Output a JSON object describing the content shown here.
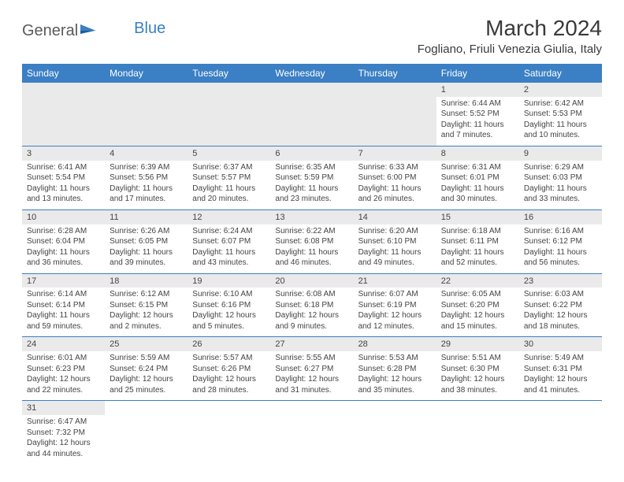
{
  "logo": {
    "part1": "General",
    "part2": "Blue"
  },
  "title": "March 2024",
  "location": "Fogliano, Friuli Venezia Giulia, Italy",
  "colors": {
    "header_bg": "#3b7fc4",
    "header_text": "#ffffff",
    "daynum_bg": "#eaeaea",
    "border": "#3b7fc4",
    "text": "#444444",
    "logo_gray": "#5a5a5a",
    "logo_blue": "#3b7fc4"
  },
  "weekdays": [
    "Sunday",
    "Monday",
    "Tuesday",
    "Wednesday",
    "Thursday",
    "Friday",
    "Saturday"
  ],
  "weeks": [
    [
      null,
      null,
      null,
      null,
      null,
      {
        "n": "1",
        "sr": "Sunrise: 6:44 AM",
        "ss": "Sunset: 5:52 PM",
        "dl1": "Daylight: 11 hours",
        "dl2": "and 7 minutes."
      },
      {
        "n": "2",
        "sr": "Sunrise: 6:42 AM",
        "ss": "Sunset: 5:53 PM",
        "dl1": "Daylight: 11 hours",
        "dl2": "and 10 minutes."
      }
    ],
    [
      {
        "n": "3",
        "sr": "Sunrise: 6:41 AM",
        "ss": "Sunset: 5:54 PM",
        "dl1": "Daylight: 11 hours",
        "dl2": "and 13 minutes."
      },
      {
        "n": "4",
        "sr": "Sunrise: 6:39 AM",
        "ss": "Sunset: 5:56 PM",
        "dl1": "Daylight: 11 hours",
        "dl2": "and 17 minutes."
      },
      {
        "n": "5",
        "sr": "Sunrise: 6:37 AM",
        "ss": "Sunset: 5:57 PM",
        "dl1": "Daylight: 11 hours",
        "dl2": "and 20 minutes."
      },
      {
        "n": "6",
        "sr": "Sunrise: 6:35 AM",
        "ss": "Sunset: 5:59 PM",
        "dl1": "Daylight: 11 hours",
        "dl2": "and 23 minutes."
      },
      {
        "n": "7",
        "sr": "Sunrise: 6:33 AM",
        "ss": "Sunset: 6:00 PM",
        "dl1": "Daylight: 11 hours",
        "dl2": "and 26 minutes."
      },
      {
        "n": "8",
        "sr": "Sunrise: 6:31 AM",
        "ss": "Sunset: 6:01 PM",
        "dl1": "Daylight: 11 hours",
        "dl2": "and 30 minutes."
      },
      {
        "n": "9",
        "sr": "Sunrise: 6:29 AM",
        "ss": "Sunset: 6:03 PM",
        "dl1": "Daylight: 11 hours",
        "dl2": "and 33 minutes."
      }
    ],
    [
      {
        "n": "10",
        "sr": "Sunrise: 6:28 AM",
        "ss": "Sunset: 6:04 PM",
        "dl1": "Daylight: 11 hours",
        "dl2": "and 36 minutes."
      },
      {
        "n": "11",
        "sr": "Sunrise: 6:26 AM",
        "ss": "Sunset: 6:05 PM",
        "dl1": "Daylight: 11 hours",
        "dl2": "and 39 minutes."
      },
      {
        "n": "12",
        "sr": "Sunrise: 6:24 AM",
        "ss": "Sunset: 6:07 PM",
        "dl1": "Daylight: 11 hours",
        "dl2": "and 43 minutes."
      },
      {
        "n": "13",
        "sr": "Sunrise: 6:22 AM",
        "ss": "Sunset: 6:08 PM",
        "dl1": "Daylight: 11 hours",
        "dl2": "and 46 minutes."
      },
      {
        "n": "14",
        "sr": "Sunrise: 6:20 AM",
        "ss": "Sunset: 6:10 PM",
        "dl1": "Daylight: 11 hours",
        "dl2": "and 49 minutes."
      },
      {
        "n": "15",
        "sr": "Sunrise: 6:18 AM",
        "ss": "Sunset: 6:11 PM",
        "dl1": "Daylight: 11 hours",
        "dl2": "and 52 minutes."
      },
      {
        "n": "16",
        "sr": "Sunrise: 6:16 AM",
        "ss": "Sunset: 6:12 PM",
        "dl1": "Daylight: 11 hours",
        "dl2": "and 56 minutes."
      }
    ],
    [
      {
        "n": "17",
        "sr": "Sunrise: 6:14 AM",
        "ss": "Sunset: 6:14 PM",
        "dl1": "Daylight: 11 hours",
        "dl2": "and 59 minutes."
      },
      {
        "n": "18",
        "sr": "Sunrise: 6:12 AM",
        "ss": "Sunset: 6:15 PM",
        "dl1": "Daylight: 12 hours",
        "dl2": "and 2 minutes."
      },
      {
        "n": "19",
        "sr": "Sunrise: 6:10 AM",
        "ss": "Sunset: 6:16 PM",
        "dl1": "Daylight: 12 hours",
        "dl2": "and 5 minutes."
      },
      {
        "n": "20",
        "sr": "Sunrise: 6:08 AM",
        "ss": "Sunset: 6:18 PM",
        "dl1": "Daylight: 12 hours",
        "dl2": "and 9 minutes."
      },
      {
        "n": "21",
        "sr": "Sunrise: 6:07 AM",
        "ss": "Sunset: 6:19 PM",
        "dl1": "Daylight: 12 hours",
        "dl2": "and 12 minutes."
      },
      {
        "n": "22",
        "sr": "Sunrise: 6:05 AM",
        "ss": "Sunset: 6:20 PM",
        "dl1": "Daylight: 12 hours",
        "dl2": "and 15 minutes."
      },
      {
        "n": "23",
        "sr": "Sunrise: 6:03 AM",
        "ss": "Sunset: 6:22 PM",
        "dl1": "Daylight: 12 hours",
        "dl2": "and 18 minutes."
      }
    ],
    [
      {
        "n": "24",
        "sr": "Sunrise: 6:01 AM",
        "ss": "Sunset: 6:23 PM",
        "dl1": "Daylight: 12 hours",
        "dl2": "and 22 minutes."
      },
      {
        "n": "25",
        "sr": "Sunrise: 5:59 AM",
        "ss": "Sunset: 6:24 PM",
        "dl1": "Daylight: 12 hours",
        "dl2": "and 25 minutes."
      },
      {
        "n": "26",
        "sr": "Sunrise: 5:57 AM",
        "ss": "Sunset: 6:26 PM",
        "dl1": "Daylight: 12 hours",
        "dl2": "and 28 minutes."
      },
      {
        "n": "27",
        "sr": "Sunrise: 5:55 AM",
        "ss": "Sunset: 6:27 PM",
        "dl1": "Daylight: 12 hours",
        "dl2": "and 31 minutes."
      },
      {
        "n": "28",
        "sr": "Sunrise: 5:53 AM",
        "ss": "Sunset: 6:28 PM",
        "dl1": "Daylight: 12 hours",
        "dl2": "and 35 minutes."
      },
      {
        "n": "29",
        "sr": "Sunrise: 5:51 AM",
        "ss": "Sunset: 6:30 PM",
        "dl1": "Daylight: 12 hours",
        "dl2": "and 38 minutes."
      },
      {
        "n": "30",
        "sr": "Sunrise: 5:49 AM",
        "ss": "Sunset: 6:31 PM",
        "dl1": "Daylight: 12 hours",
        "dl2": "and 41 minutes."
      }
    ],
    [
      {
        "n": "31",
        "sr": "Sunrise: 6:47 AM",
        "ss": "Sunset: 7:32 PM",
        "dl1": "Daylight: 12 hours",
        "dl2": "and 44 minutes."
      },
      null,
      null,
      null,
      null,
      null,
      null
    ]
  ]
}
